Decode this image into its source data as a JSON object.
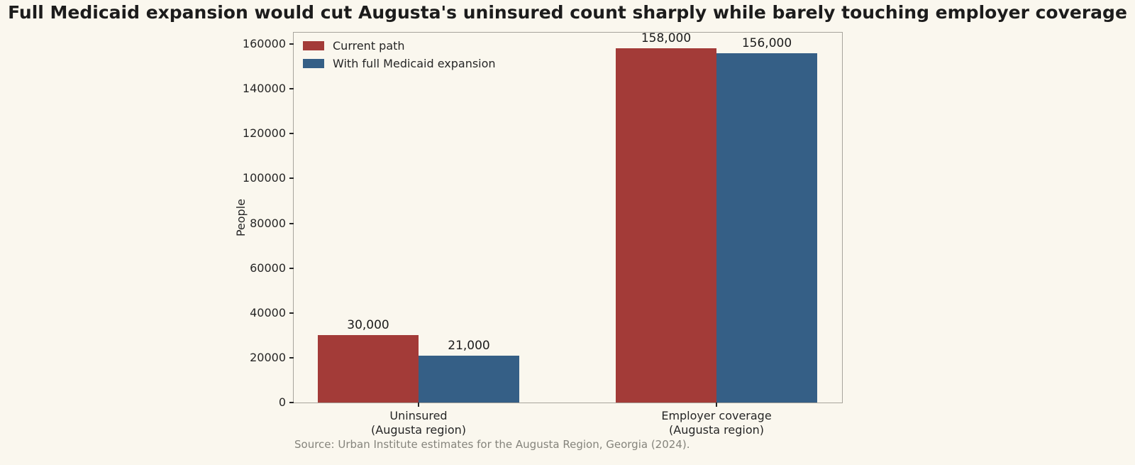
{
  "figure": {
    "title": "Full Medicaid expansion would cut Augusta's uninsured count sharply while barely touching employer coverage",
    "source": "Source: Urban Institute estimates for the Augusta Region, Georgia (2024).",
    "background_color": "#faf7ee"
  },
  "chart_data": {
    "type": "bar",
    "title": "Full Medicaid expansion would cut Augusta's uninsured count sharply while barely touching employer coverage",
    "xlabel": "",
    "ylabel": "People",
    "categories": [
      "Uninsured\n(Augusta region)",
      "Employer coverage\n(Augusta region)"
    ],
    "series": [
      {
        "name": "Current path",
        "color": "#a33b38",
        "values": [
          30000,
          158000
        ],
        "value_labels": [
          "30,000",
          "158,000"
        ]
      },
      {
        "name": "With full Medicaid expansion",
        "color": "#355f86",
        "values": [
          21000,
          156000
        ],
        "value_labels": [
          "21,000",
          "156,000"
        ]
      }
    ],
    "yticks": [
      0,
      20000,
      40000,
      60000,
      80000,
      100000,
      120000,
      140000,
      160000
    ],
    "ylim": [
      0,
      165000
    ],
    "grid": false,
    "legend_position": "upper left"
  }
}
